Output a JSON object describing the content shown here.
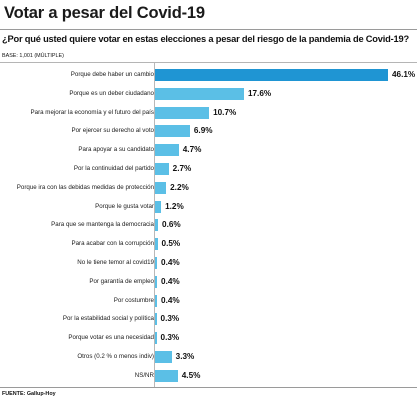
{
  "header": {
    "title": "Votar a pesar del Covid-19",
    "question": "¿Por qué usted quiere votar en estas elecciones a pesar del riesgo de la pandemia de Covid-19?",
    "base": "BASE: 1,001 (MÚLTIPLE)"
  },
  "footer": {
    "source": "FUENTE: Gallup-Hoy"
  },
  "colors": {
    "bar_highlight": "#1f95d3",
    "bar": "#5bbfe6",
    "axis": "#b8b8b8"
  },
  "chart_data": {
    "type": "bar",
    "orientation": "horizontal",
    "categories": [
      "Porque debe haber un cambio",
      "Porque es un deber ciudadano",
      "Para mejorar la economía y el futuro del país",
      "Por ejercer su derecho al voto",
      "Para apoyar a su candidato",
      "Por la continuidad del partido",
      "Porque ira con las debidas medidas de protección",
      "Porque le gusta votar",
      "Para que se mantenga la democracia",
      "Para acabar con la corrupción",
      "No le tiene temor al covid19",
      "Por garantía de  empleo",
      "Por costumbre",
      "Por la estabilidad social y política",
      "Porque votar es una necesidad",
      "Otros (0.2 % o menos indiv)",
      "NS/NR"
    ],
    "values": [
      46.1,
      17.6,
      10.7,
      6.9,
      4.7,
      2.7,
      2.2,
      1.2,
      0.6,
      0.5,
      0.4,
      0.4,
      0.4,
      0.3,
      0.3,
      3.3,
      4.5
    ],
    "value_labels": [
      "46.1%",
      "17.6%",
      "10.7%",
      "6.9%",
      "4.7%",
      "2.7%",
      "2.2%",
      "1.2%",
      "0.6%",
      "0.5%",
      "0.4%",
      "0.4%",
      "0.4%",
      "0.3%",
      "0.3%",
      "3.3%",
      "4.5%"
    ],
    "xlim": [
      0,
      46.1
    ],
    "grid": false,
    "legend": "none"
  }
}
